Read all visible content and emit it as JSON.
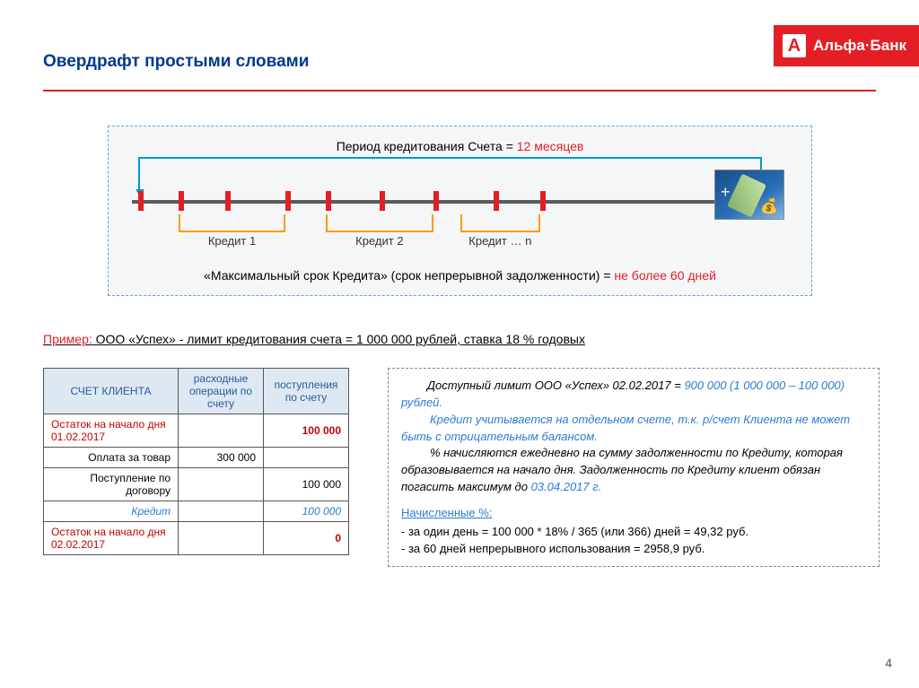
{
  "page_number": "4",
  "logo": {
    "letter": "А",
    "text": "Альфа·Банк"
  },
  "title": "Овердрафт простыми словами",
  "colors": {
    "accent_red": "#e31e24",
    "accent_blue": "#003a8c",
    "cyan": "#0099cc",
    "orange": "#ff9900",
    "diagram_bg": "#f4f6f8",
    "diagram_border": "#6aa2d8",
    "th_bg": "#dde8f2"
  },
  "diagram": {
    "period_label": "Период кредитования Счета = ",
    "period_value": "12 месяцев",
    "axis": {
      "left_pct": 1,
      "right_pct": 92
    },
    "ticks_pct": [
      2,
      8,
      15,
      24,
      30,
      38,
      46,
      55,
      62,
      95
    ],
    "brackets": [
      {
        "left_pct": 8,
        "right_pct": 24,
        "label": "Кредит 1"
      },
      {
        "left_pct": 30,
        "right_pct": 46,
        "label": "Кредит 2"
      },
      {
        "left_pct": 50,
        "right_pct": 62,
        "label": "Кредит … n"
      }
    ],
    "big_arrow": {
      "left_pct": 2,
      "right_pct": 95
    },
    "bottom_label": "«Максимальный срок Кредита» (срок непрерывной задолженности) = ",
    "bottom_value": "не более 60 дней"
  },
  "example": {
    "label": "Пример:",
    "text": " ООО «Успех» - лимит кредитования счета = 1 000 000 рублей, ставка 18 % годовых"
  },
  "table": {
    "headers": [
      "СЧЕТ КЛИЕНТА",
      "расходные операции по счету",
      "поступления по счету"
    ],
    "rows": [
      {
        "c0": "Остаток на начало дня 01.02.2017",
        "c0_cls": "cell-red",
        "c1": "",
        "c2": "100 000",
        "c2_cls": "cell-redbold cell-right"
      },
      {
        "c0": "Оплата за товар",
        "c0_cls": "cell-right",
        "c1": "300 000",
        "c1_cls": "cell-right",
        "c2": ""
      },
      {
        "c0": "Поступление по договору",
        "c0_cls": "cell-right",
        "c1": "",
        "c2": "100 000",
        "c2_cls": "cell-right"
      },
      {
        "c0": "Кредит",
        "c0_cls": "cell-blue-italic",
        "c1": "",
        "c2": "100 000",
        "c2_cls": "cell-blue-italic"
      },
      {
        "c0": "Остаток на начало дня 02.02.2017",
        "c0_cls": "cell-red",
        "c1": "",
        "c2": "0",
        "c2_cls": "cell-redbold cell-right"
      }
    ]
  },
  "info": {
    "p1_indent": "        ",
    "p1a": "Доступный лимит ООО «Успех» 02.02.2017 = ",
    "p1b": "900 000 (1 000 000 – 100 000) рублей.",
    "p2": "Кредит учитывается на отдельном счете, т.к. р/счет Клиента не может быть с отрицательным балансом.",
    "p3a": "% начисляются ежедневно на сумму задолженности по Кредиту, которая  образовывается на начало дня. Задолженность по Кредиту клиент обязан погасить максимум до ",
    "p3b": "03.04.2017 г.",
    "calc_title": "Начисленные %:",
    "calc_lines": [
      "за один день =  100 000 * 18% / 365 (или 366) дней =  49,32 руб.",
      "за 60 дней непрерывного использования  = 2958,9 руб."
    ]
  }
}
